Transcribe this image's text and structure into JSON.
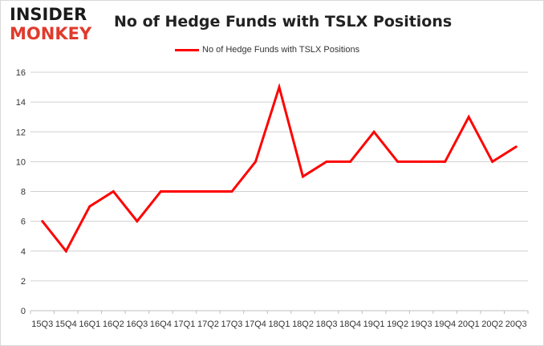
{
  "logo": {
    "line1": "INSIDER",
    "line2": "MONKEY"
  },
  "chart_data": {
    "type": "line",
    "title": "No of Hedge Funds with TSLX Positions",
    "xlabel": "",
    "ylabel": "",
    "categories": [
      "15Q3",
      "15Q4",
      "16Q1",
      "16Q2",
      "16Q3",
      "16Q4",
      "17Q1",
      "17Q2",
      "17Q3",
      "17Q4",
      "18Q1",
      "18Q2",
      "18Q3",
      "18Q4",
      "19Q1",
      "19Q2",
      "19Q3",
      "19Q4",
      "20Q1",
      "20Q2",
      "20Q3"
    ],
    "series": [
      {
        "name": "No of Hedge Funds with TSLX Positions",
        "color": "#ff0000",
        "values": [
          6,
          4,
          7,
          8,
          6,
          8,
          8,
          8,
          8,
          10,
          15,
          9,
          10,
          10,
          12,
          10,
          10,
          10,
          13,
          10,
          11
        ]
      }
    ],
    "ylim": [
      0,
      16
    ],
    "yticks": [
      0,
      2,
      4,
      6,
      8,
      10,
      12,
      14,
      16
    ],
    "grid": true,
    "legend_position": "top-center"
  }
}
